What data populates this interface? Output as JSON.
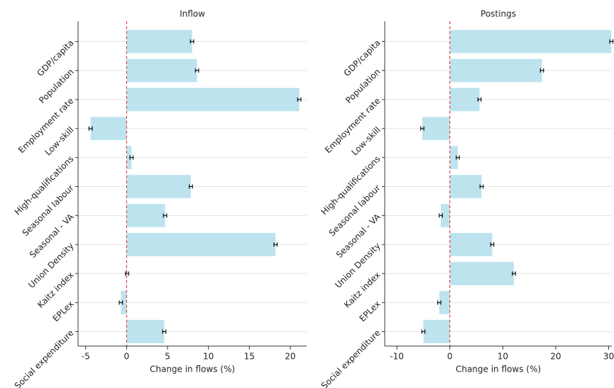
{
  "chart_data": [
    {
      "type": "bar",
      "orientation": "horizontal",
      "title": "Inflow",
      "xlabel": "Change in flows (%)",
      "categories": [
        "GDP/capita",
        "Population",
        "Employment rate",
        "Low-skill",
        "High-qualifications",
        "Seasonal labour",
        "Seasonal - VA",
        "Union Density",
        "Kaitz index",
        "EPLex",
        "Social expenditure"
      ],
      "values": [
        8.0,
        8.6,
        21.1,
        -4.4,
        0.6,
        7.85,
        4.7,
        18.2,
        0.05,
        -0.7,
        4.6
      ],
      "errors": [
        0.2,
        0.2,
        0.2,
        0.2,
        0.2,
        0.2,
        0.2,
        0.2,
        0.2,
        0.2,
        0.2
      ],
      "color": "#bde3ee",
      "zero_line_color": "#d62728",
      "xlim": [
        -5.93,
        22.0
      ],
      "xticks": [
        -5,
        0,
        5,
        10,
        15,
        20
      ],
      "grid": true
    },
    {
      "type": "bar",
      "orientation": "horizontal",
      "title": "Postings",
      "xlabel": "Change in flows (%)",
      "categories": [
        "GDP/capita",
        "Population",
        "Employment rate",
        "Low-skill",
        "High-qualifications",
        "Seasonal labour",
        "Seasonal - VA",
        "Union Density",
        "Kaitz index",
        "EPLex",
        "Social expenditure"
      ],
      "values": [
        30.5,
        17.4,
        5.6,
        -5.2,
        1.5,
        6.0,
        -1.7,
        8.0,
        12.1,
        -2.0,
        -5.0
      ],
      "errors": [
        0.3,
        0.3,
        0.3,
        0.3,
        0.3,
        0.3,
        0.3,
        0.3,
        0.3,
        0.3,
        0.3
      ],
      "color": "#bde3ee",
      "zero_line_color": "#d62728",
      "xlim": [
        -12.3,
        30.6
      ],
      "xticks": [
        -10,
        0,
        10,
        20,
        30
      ],
      "grid": true
    }
  ]
}
